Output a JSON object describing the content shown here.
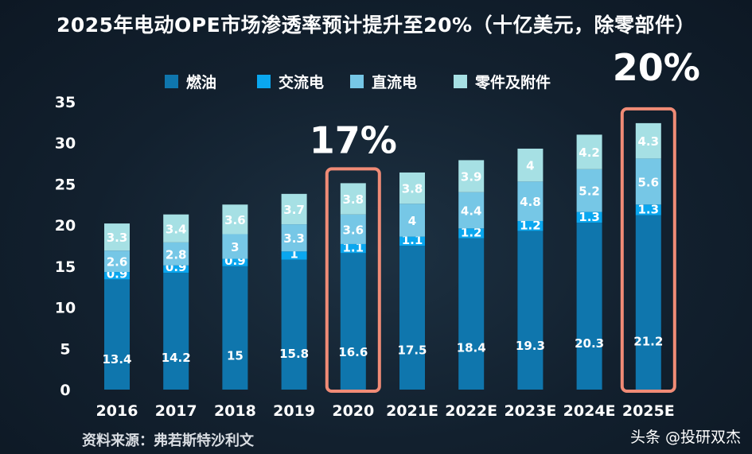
{
  "chart_data": {
    "type": "bar",
    "stacked": true,
    "title": "2025年电动OPE市场渗透率预计提升至20%（十亿美元，除零部件）",
    "xlabel": "",
    "ylabel": "",
    "ylim": [
      0,
      35
    ],
    "yticks": [
      0,
      5,
      10,
      15,
      20,
      25,
      30,
      35
    ],
    "legend_position": "top",
    "categories": [
      "2016",
      "2017",
      "2018",
      "2019",
      "2020",
      "2021E",
      "2022E",
      "2023E",
      "2024E",
      "2025E"
    ],
    "series": [
      {
        "name": "燃油",
        "color": "#0f76ad",
        "values": [
          13.4,
          14.2,
          15,
          15.8,
          16.6,
          17.5,
          18.4,
          19.3,
          20.3,
          21.2
        ]
      },
      {
        "name": "交流电",
        "color": "#0aa7ef",
        "values": [
          0.9,
          0.9,
          0.9,
          1,
          1.1,
          1.1,
          1.2,
          1.2,
          1.3,
          1.3
        ]
      },
      {
        "name": "直流电",
        "color": "#76c7e6",
        "values": [
          2.6,
          2.8,
          3,
          3.3,
          3.6,
          4,
          4.4,
          4.8,
          5.2,
          5.6
        ]
      },
      {
        "name": "零件及附件",
        "color": "#a6e0e4",
        "values": [
          3.3,
          3.4,
          3.6,
          3.7,
          3.8,
          3.8,
          3.9,
          4,
          4.2,
          4.3
        ]
      }
    ],
    "annotations": [
      {
        "category": "2020",
        "text": "17%"
      },
      {
        "category": "2025E",
        "text": "20%"
      }
    ],
    "highlight_color": "#f08b76"
  },
  "source": "资料来源：弗若斯特沙利文",
  "watermark": "头条 @投研双杰"
}
